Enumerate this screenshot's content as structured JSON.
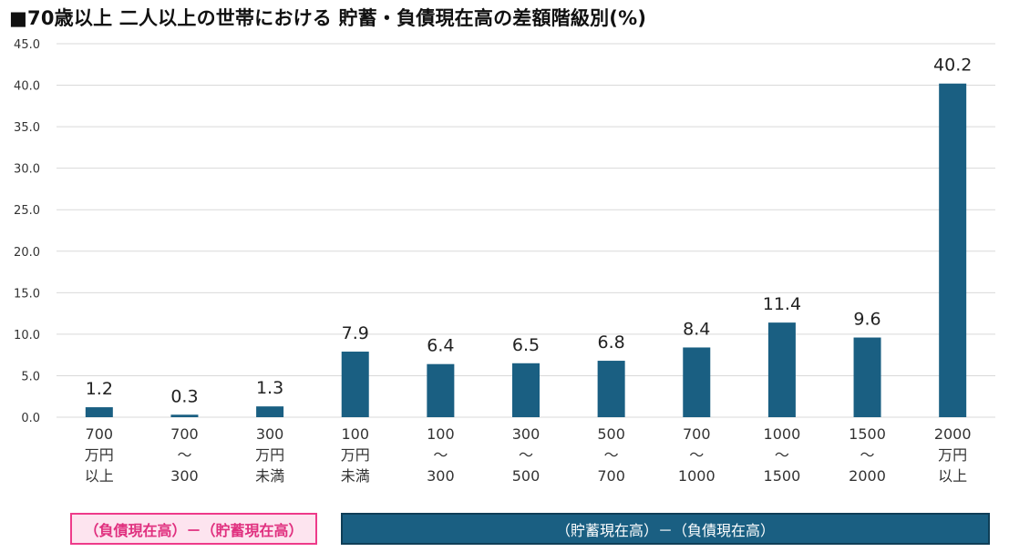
{
  "chart_data": {
    "type": "bar",
    "title": "■70歳以上 二人以上の世帯における 貯蓄・負債現在高の差額階級別(%)",
    "categories": [
      [
        "700",
        "万円",
        "以上"
      ],
      [
        "700",
        "～",
        "300"
      ],
      [
        "300",
        "万円",
        "未満"
      ],
      [
        "100",
        "万円",
        "未満"
      ],
      [
        "100",
        "～",
        "300"
      ],
      [
        "300",
        "～",
        "500"
      ],
      [
        "500",
        "～",
        "700"
      ],
      [
        "700",
        "～",
        "1000"
      ],
      [
        "1000",
        "～",
        "1500"
      ],
      [
        "1500",
        "～",
        "2000"
      ],
      [
        "2000",
        "万円",
        "以上"
      ]
    ],
    "values": [
      1.2,
      0.3,
      1.3,
      7.9,
      6.4,
      6.5,
      6.8,
      8.4,
      11.4,
      9.6,
      40.2
    ],
    "value_labels": [
      "1.2",
      "0.3",
      "1.3",
      "7.9",
      "6.4",
      "6.5",
      "6.8",
      "8.4",
      "11.4",
      "9.6",
      "40.2"
    ],
    "ylim": [
      0,
      45
    ],
    "yticks": [
      "0.0",
      "5.0",
      "10.0",
      "15.0",
      "20.0",
      "25.0",
      "30.0",
      "35.0",
      "40.0",
      "45.0"
    ],
    "grid": true,
    "bar_color": "#1a5f82",
    "groups": [
      {
        "label": "（負債現在高）－（貯蓄現在高）",
        "bg": "#fde4ef",
        "border": "#ee3b8a",
        "text_color": "#e0307f"
      },
      {
        "label": "（貯蓄現在高）－（負債現在高）",
        "bg": "#1a5f82",
        "border": "#0f3e57",
        "text_color": "#ffffff"
      }
    ]
  }
}
